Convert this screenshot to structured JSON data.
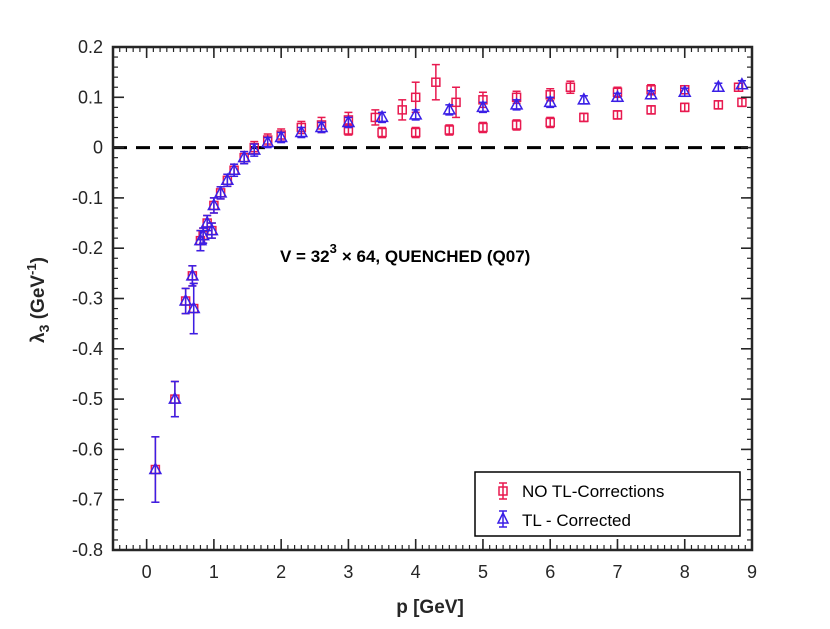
{
  "chart_data": {
    "type": "scatter",
    "title": "",
    "xlabel": "p [GeV]",
    "ylabel_main": "λ",
    "ylabel_sub": "3",
    "ylabel_unit_pre": " (GeV",
    "ylabel_unit_sup": "-1",
    "ylabel_unit_post": ")",
    "xlim": [
      -0.5,
      9
    ],
    "ylim": [
      -0.8,
      0.2
    ],
    "xticks": [
      0,
      1,
      2,
      3,
      4,
      5,
      6,
      7,
      8,
      9
    ],
    "yticks": [
      0.2,
      0.1,
      0,
      -0.1,
      -0.2,
      -0.3,
      -0.4,
      -0.5,
      -0.6,
      -0.7,
      -0.8
    ],
    "xtick_labels": [
      "0",
      "1",
      "2",
      "3",
      "4",
      "5",
      "6",
      "7",
      "8",
      "9"
    ],
    "ytick_labels": [
      "0.2",
      "0.1",
      "0",
      "-0.1",
      "-0.2",
      "-0.3",
      "-0.4",
      "-0.5",
      "-0.6",
      "-0.7",
      "-0.8"
    ],
    "reference_line": {
      "y": 0,
      "style": "dashed",
      "color": "#000000"
    },
    "annotation": {
      "prefix": "V = 32",
      "sup": "3",
      "suffix": "× 64, QUENCHED (Q07)"
    },
    "legend_position": "bottom-right",
    "series": [
      {
        "name": "NO TL-Corrections",
        "marker": "square",
        "color": "#e8194f",
        "points": [
          {
            "x": 0.13,
            "y": -0.64,
            "err": 0.065
          },
          {
            "x": 0.42,
            "y": -0.5,
            "err": 0.035
          },
          {
            "x": 0.58,
            "y": -0.305,
            "err": 0.025
          },
          {
            "x": 0.68,
            "y": -0.255,
            "err": 0.02
          },
          {
            "x": 0.7,
            "y": -0.32,
            "err": 0.05
          },
          {
            "x": 0.8,
            "y": -0.185,
            "err": 0.02
          },
          {
            "x": 0.84,
            "y": -0.175,
            "err": 0.015
          },
          {
            "x": 0.9,
            "y": -0.15,
            "err": 0.015
          },
          {
            "x": 0.97,
            "y": -0.165,
            "err": 0.015
          },
          {
            "x": 1.0,
            "y": -0.115,
            "err": 0.015
          },
          {
            "x": 1.1,
            "y": -0.09,
            "err": 0.012
          },
          {
            "x": 1.2,
            "y": -0.065,
            "err": 0.012
          },
          {
            "x": 1.3,
            "y": -0.045,
            "err": 0.012
          },
          {
            "x": 1.45,
            "y": -0.02,
            "err": 0.012
          },
          {
            "x": 1.6,
            "y": 0.0,
            "err": 0.012
          },
          {
            "x": 1.8,
            "y": 0.015,
            "err": 0.012
          },
          {
            "x": 2.0,
            "y": 0.025,
            "err": 0.012
          },
          {
            "x": 2.3,
            "y": 0.04,
            "err": 0.012
          },
          {
            "x": 2.6,
            "y": 0.045,
            "err": 0.015
          },
          {
            "x": 3.0,
            "y": 0.055,
            "err": 0.015
          },
          {
            "x": 3.4,
            "y": 0.06,
            "err": 0.015
          },
          {
            "x": 3.8,
            "y": 0.075,
            "err": 0.02
          },
          {
            "x": 4.0,
            "y": 0.1,
            "err": 0.03
          },
          {
            "x": 4.3,
            "y": 0.13,
            "err": 0.035
          },
          {
            "x": 4.6,
            "y": 0.09,
            "err": 0.03
          },
          {
            "x": 5.0,
            "y": 0.095,
            "err": 0.015
          },
          {
            "x": 5.5,
            "y": 0.1,
            "err": 0.012
          },
          {
            "x": 6.0,
            "y": 0.105,
            "err": 0.012
          },
          {
            "x": 6.3,
            "y": 0.12,
            "err": 0.012
          },
          {
            "x": 7.0,
            "y": 0.11,
            "err": 0.01
          },
          {
            "x": 7.5,
            "y": 0.115,
            "err": 0.01
          },
          {
            "x": 8.0,
            "y": 0.115,
            "err": 0.008
          },
          {
            "x": 8.8,
            "y": 0.12,
            "err": 0.008
          },
          {
            "x": 3.0,
            "y": 0.035,
            "err": 0.01
          },
          {
            "x": 3.5,
            "y": 0.03,
            "err": 0.01
          },
          {
            "x": 4.0,
            "y": 0.03,
            "err": 0.01
          },
          {
            "x": 4.5,
            "y": 0.035,
            "err": 0.01
          },
          {
            "x": 5.0,
            "y": 0.04,
            "err": 0.01
          },
          {
            "x": 5.5,
            "y": 0.045,
            "err": 0.01
          },
          {
            "x": 6.0,
            "y": 0.05,
            "err": 0.01
          },
          {
            "x": 6.5,
            "y": 0.06,
            "err": 0.008
          },
          {
            "x": 7.0,
            "y": 0.065,
            "err": 0.008
          },
          {
            "x": 7.5,
            "y": 0.075,
            "err": 0.008
          },
          {
            "x": 8.0,
            "y": 0.08,
            "err": 0.008
          },
          {
            "x": 8.5,
            "y": 0.085,
            "err": 0.008
          },
          {
            "x": 8.85,
            "y": 0.09,
            "err": 0.008
          }
        ]
      },
      {
        "name": "TL - Corrected",
        "marker": "triangle",
        "color": "#3a1fe6",
        "points": [
          {
            "x": 0.13,
            "y": -0.64,
            "err": 0.065
          },
          {
            "x": 0.42,
            "y": -0.5,
            "err": 0.035
          },
          {
            "x": 0.58,
            "y": -0.305,
            "err": 0.025
          },
          {
            "x": 0.68,
            "y": -0.255,
            "err": 0.02
          },
          {
            "x": 0.7,
            "y": -0.32,
            "err": 0.05
          },
          {
            "x": 0.8,
            "y": -0.185,
            "err": 0.02
          },
          {
            "x": 0.84,
            "y": -0.175,
            "err": 0.015
          },
          {
            "x": 0.9,
            "y": -0.15,
            "err": 0.015
          },
          {
            "x": 0.97,
            "y": -0.165,
            "err": 0.015
          },
          {
            "x": 1.0,
            "y": -0.115,
            "err": 0.015
          },
          {
            "x": 1.1,
            "y": -0.09,
            "err": 0.012
          },
          {
            "x": 1.2,
            "y": -0.065,
            "err": 0.012
          },
          {
            "x": 1.3,
            "y": -0.045,
            "err": 0.012
          },
          {
            "x": 1.45,
            "y": -0.02,
            "err": 0.012
          },
          {
            "x": 1.6,
            "y": -0.005,
            "err": 0.012
          },
          {
            "x": 1.8,
            "y": 0.01,
            "err": 0.01
          },
          {
            "x": 2.0,
            "y": 0.02,
            "err": 0.01
          },
          {
            "x": 2.3,
            "y": 0.03,
            "err": 0.01
          },
          {
            "x": 2.6,
            "y": 0.04,
            "err": 0.01
          },
          {
            "x": 3.0,
            "y": 0.05,
            "err": 0.01
          },
          {
            "x": 3.5,
            "y": 0.06,
            "err": 0.01
          },
          {
            "x": 4.0,
            "y": 0.065,
            "err": 0.01
          },
          {
            "x": 4.5,
            "y": 0.075,
            "err": 0.01
          },
          {
            "x": 5.0,
            "y": 0.08,
            "err": 0.01
          },
          {
            "x": 5.5,
            "y": 0.085,
            "err": 0.01
          },
          {
            "x": 6.0,
            "y": 0.09,
            "err": 0.01
          },
          {
            "x": 6.5,
            "y": 0.095,
            "err": 0.008
          },
          {
            "x": 7.0,
            "y": 0.1,
            "err": 0.008
          },
          {
            "x": 7.5,
            "y": 0.105,
            "err": 0.008
          },
          {
            "x": 8.0,
            "y": 0.11,
            "err": 0.008
          },
          {
            "x": 8.5,
            "y": 0.12,
            "err": 0.008
          },
          {
            "x": 8.85,
            "y": 0.125,
            "err": 0.008
          }
        ]
      }
    ]
  }
}
